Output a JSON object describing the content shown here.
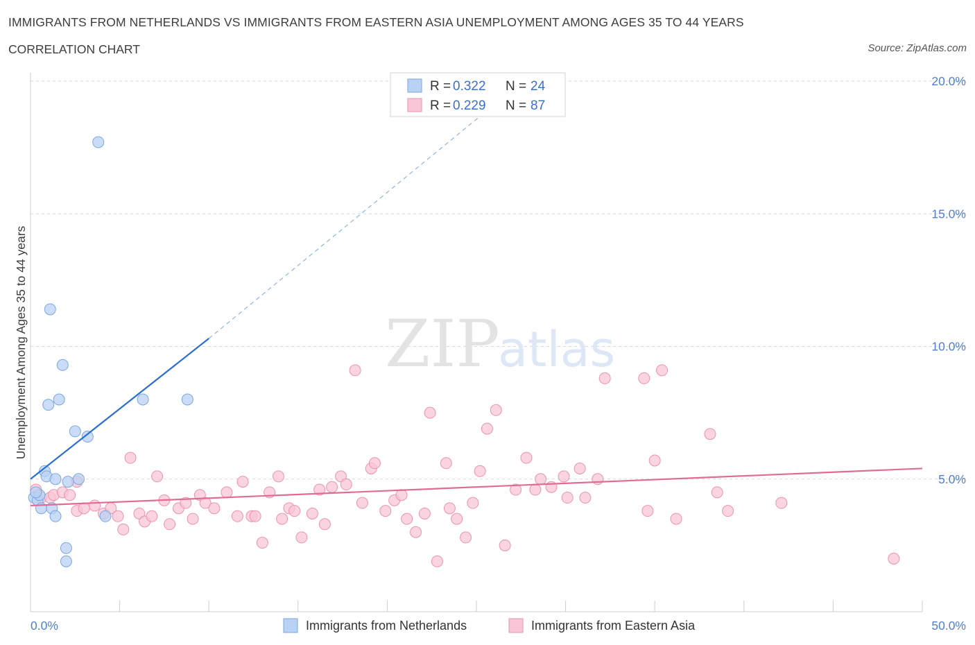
{
  "title": "IMMIGRANTS FROM NETHERLANDS VS IMMIGRANTS FROM EASTERN ASIA UNEMPLOYMENT AMONG AGES 35 TO 44 YEARS",
  "subtitle": "CORRELATION CHART",
  "source": "Source: ZipAtlas.com",
  "watermark": {
    "zip": "ZIP",
    "atlas": "atlas"
  },
  "colors": {
    "netherlands_fill": "#b9d2f3",
    "netherlands_stroke": "#7aa6e0",
    "netherlands_line": "#2a6fcf",
    "eastasia_fill": "#f8c6d6",
    "eastasia_stroke": "#ea93b1",
    "eastasia_line": "#e06c96",
    "grid": "#d9d9d9",
    "tick_label": "#4f7fd0"
  },
  "legend": {
    "r_label": "R =",
    "n_label": "N =",
    "rows": [
      {
        "r": "0.322",
        "n": "24"
      },
      {
        "r": "0.229",
        "n": "87"
      }
    ]
  },
  "chart_data": {
    "type": "scatter",
    "xlabel": "",
    "ylabel": "Unemployment Among Ages 35 to 44 years",
    "xlim": [
      0,
      50
    ],
    "ylim": [
      0,
      20
    ],
    "x_tick_labels": [
      "0.0%",
      "50.0%"
    ],
    "y_tick_labels": [
      "5.0%",
      "10.0%",
      "15.0%",
      "20.0%"
    ],
    "y_ticks": [
      5,
      10,
      15,
      20
    ],
    "grid": true,
    "legend_position": "top-center",
    "series": [
      {
        "name": "Immigrants from Netherlands",
        "trend": {
          "x0": 0,
          "y0": 5.0,
          "x1": 10,
          "y1": 10.3,
          "dashed_to_x": 26.7,
          "dashed_to_y": 19.5
        },
        "points": [
          [
            0.2,
            4.3
          ],
          [
            0.4,
            4.2
          ],
          [
            0.5,
            4.4
          ],
          [
            0.6,
            3.9
          ],
          [
            0.8,
            5.3
          ],
          [
            0.9,
            5.1
          ],
          [
            1.0,
            7.8
          ],
          [
            1.1,
            11.4
          ],
          [
            1.2,
            3.9
          ],
          [
            1.4,
            5.0
          ],
          [
            1.4,
            3.6
          ],
          [
            1.6,
            8.0
          ],
          [
            1.8,
            9.3
          ],
          [
            2.0,
            2.4
          ],
          [
            2.0,
            1.9
          ],
          [
            2.1,
            4.9
          ],
          [
            2.5,
            6.8
          ],
          [
            2.7,
            5.0
          ],
          [
            3.2,
            6.6
          ],
          [
            3.8,
            17.7
          ],
          [
            4.2,
            3.6
          ],
          [
            6.3,
            8.0
          ],
          [
            8.8,
            8.0
          ],
          [
            0.3,
            4.5
          ]
        ]
      },
      {
        "name": "Immigrants from Eastern Asia",
        "trend": {
          "x0": 0,
          "y0": 4.0,
          "x1": 50,
          "y1": 5.4
        },
        "points": [
          [
            0.3,
            4.6
          ],
          [
            0.6,
            4.3
          ],
          [
            1.1,
            4.3
          ],
          [
            1.3,
            4.4
          ],
          [
            1.8,
            4.5
          ],
          [
            2.2,
            4.4
          ],
          [
            2.6,
            4.9
          ],
          [
            2.6,
            3.8
          ],
          [
            3.0,
            3.9
          ],
          [
            3.6,
            4.0
          ],
          [
            4.1,
            3.7
          ],
          [
            4.5,
            3.9
          ],
          [
            4.9,
            3.6
          ],
          [
            5.2,
            3.1
          ],
          [
            5.6,
            5.8
          ],
          [
            6.1,
            3.7
          ],
          [
            6.4,
            3.4
          ],
          [
            6.8,
            3.6
          ],
          [
            7.1,
            5.1
          ],
          [
            7.5,
            4.2
          ],
          [
            7.8,
            3.3
          ],
          [
            8.3,
            3.9
          ],
          [
            8.7,
            4.1
          ],
          [
            9.1,
            3.5
          ],
          [
            9.5,
            4.4
          ],
          [
            9.8,
            4.1
          ],
          [
            10.3,
            3.9
          ],
          [
            11.0,
            4.5
          ],
          [
            11.6,
            3.6
          ],
          [
            11.9,
            4.9
          ],
          [
            12.4,
            3.6
          ],
          [
            12.6,
            3.6
          ],
          [
            13.0,
            2.6
          ],
          [
            13.4,
            4.5
          ],
          [
            13.9,
            5.1
          ],
          [
            14.1,
            3.5
          ],
          [
            14.5,
            3.9
          ],
          [
            14.8,
            3.8
          ],
          [
            15.2,
            2.8
          ],
          [
            15.8,
            3.7
          ],
          [
            16.2,
            4.6
          ],
          [
            16.5,
            3.3
          ],
          [
            16.9,
            4.7
          ],
          [
            17.4,
            5.1
          ],
          [
            17.7,
            4.8
          ],
          [
            18.2,
            9.1
          ],
          [
            18.6,
            4.1
          ],
          [
            19.1,
            5.4
          ],
          [
            19.3,
            5.6
          ],
          [
            19.9,
            3.8
          ],
          [
            20.4,
            4.2
          ],
          [
            20.8,
            4.4
          ],
          [
            21.1,
            3.5
          ],
          [
            21.6,
            3.0
          ],
          [
            22.1,
            3.7
          ],
          [
            22.4,
            7.5
          ],
          [
            22.8,
            1.9
          ],
          [
            23.3,
            5.6
          ],
          [
            23.5,
            3.9
          ],
          [
            23.9,
            3.5
          ],
          [
            24.4,
            2.8
          ],
          [
            24.8,
            4.1
          ],
          [
            25.2,
            5.3
          ],
          [
            25.6,
            6.9
          ],
          [
            26.1,
            7.6
          ],
          [
            26.6,
            2.5
          ],
          [
            27.2,
            4.6
          ],
          [
            27.8,
            5.8
          ],
          [
            28.3,
            4.6
          ],
          [
            28.6,
            5.0
          ],
          [
            29.2,
            4.7
          ],
          [
            29.9,
            5.1
          ],
          [
            30.1,
            4.3
          ],
          [
            30.8,
            5.4
          ],
          [
            31.1,
            4.3
          ],
          [
            31.8,
            5.0
          ],
          [
            32.2,
            8.8
          ],
          [
            34.4,
            8.8
          ],
          [
            34.6,
            3.8
          ],
          [
            35.0,
            5.7
          ],
          [
            35.4,
            9.1
          ],
          [
            36.2,
            3.5
          ],
          [
            38.1,
            6.7
          ],
          [
            38.5,
            4.5
          ],
          [
            39.1,
            3.8
          ],
          [
            42.1,
            4.1
          ],
          [
            48.4,
            2.0
          ]
        ]
      }
    ]
  },
  "bottom_legend": [
    {
      "label": "Immigrants from Netherlands"
    },
    {
      "label": "Immigrants from Eastern Asia"
    }
  ]
}
